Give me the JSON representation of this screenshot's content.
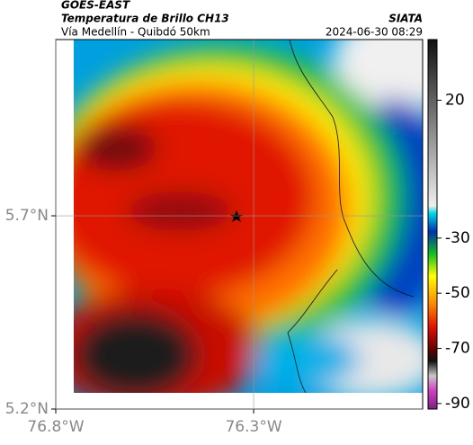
{
  "header": {
    "title": "GOES-EAST",
    "subtitle": "Temperatura de Brillo CH13",
    "location": "Vía Medellín - Quibdó 50km",
    "source": "SIATA",
    "timestamp": "2024-06-30 08:29"
  },
  "map": {
    "xlim": [
      -76.8,
      -75.873
    ],
    "ylim": [
      5.2,
      6.156
    ],
    "xticks": [
      {
        "value": -76.8,
        "label": "76.8°W"
      },
      {
        "value": -76.3,
        "label": "76.3°W"
      }
    ],
    "yticks": [
      {
        "value": 5.2,
        "label": "5.2°N"
      },
      {
        "value": 5.7,
        "label": "5.7°N"
      }
    ],
    "colorbar": {
      "lim": [
        -92,
        42
      ],
      "ticks": [
        20,
        -30,
        -50,
        -70,
        -90
      ]
    }
  }
}
